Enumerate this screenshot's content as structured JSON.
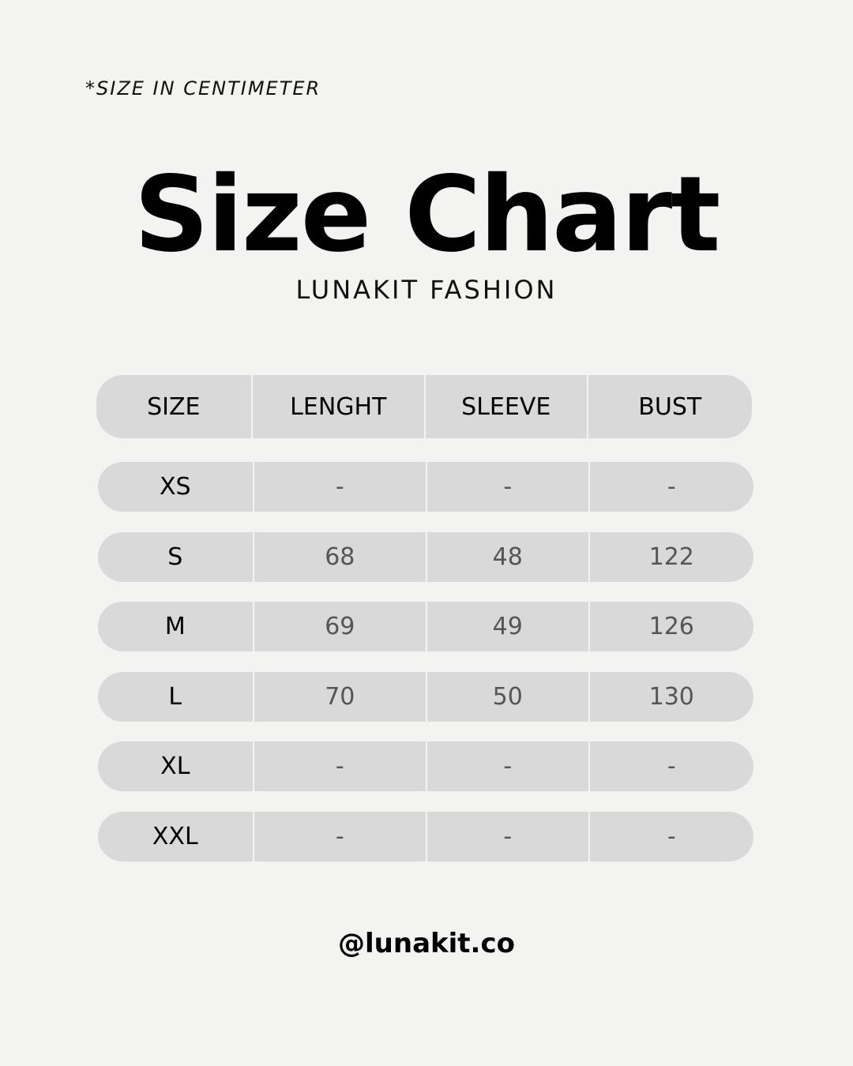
{
  "note": "*SIZE IN CENTIMETER",
  "title": "Size Chart",
  "subtitle": "LUNAKIT FASHION",
  "table": {
    "headers": [
      "SIZE",
      "LENGHT",
      "SLEEVE",
      "BUST"
    ],
    "rows": [
      [
        "XS",
        "-",
        "-",
        "-"
      ],
      [
        "S",
        "68",
        "48",
        "122"
      ],
      [
        "M",
        "69",
        "49",
        "126"
      ],
      [
        "L",
        "70",
        "50",
        "130"
      ],
      [
        "XL",
        "-",
        "-",
        "-"
      ],
      [
        "XXL",
        "-",
        "-",
        "-"
      ]
    ]
  },
  "handle": "@lunakit.co"
}
